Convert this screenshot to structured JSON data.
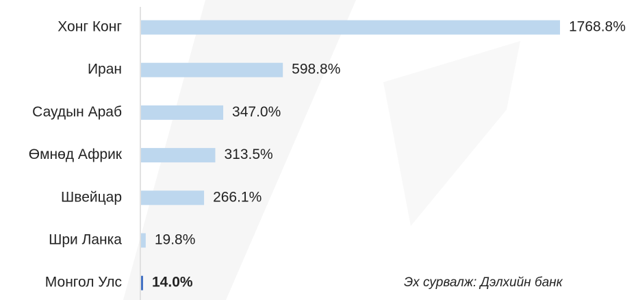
{
  "chart_data": {
    "type": "bar",
    "orientation": "horizontal",
    "categories": [
      "Хонг Конг",
      "Иран",
      "Саудын Араб",
      "Өмнөд Африк",
      "Швейцар",
      "Шри Ланка",
      "Монгол Улс"
    ],
    "values": [
      1768.8,
      598.8,
      347.0,
      313.5,
      266.1,
      19.8,
      14.0
    ],
    "value_labels": [
      "1768.8%",
      "598.8%",
      "347.0%",
      "313.5%",
      "266.1%",
      "19.8%",
      "14.0%"
    ],
    "colors": [
      "#bdd7ee",
      "#bdd7ee",
      "#bdd7ee",
      "#bdd7ee",
      "#bdd7ee",
      "#bdd7ee",
      "#4472c4"
    ],
    "source": "Эх сурвалж: Дэлхийн банк"
  }
}
